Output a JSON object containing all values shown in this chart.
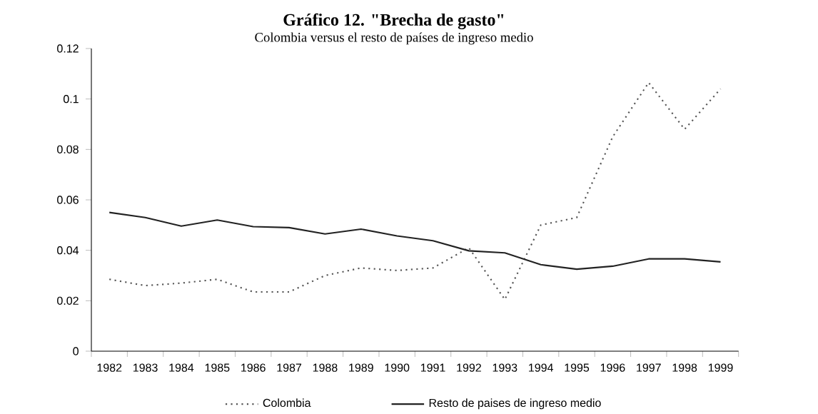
{
  "chart_data": {
    "type": "line",
    "title": "Gráfico 12. \"Brecha de gasto\"",
    "subtitle": "Colombia versus el resto de países de ingreso medio",
    "categories": [
      "1982",
      "1983",
      "1984",
      "1985",
      "1986",
      "1987",
      "1988",
      "1989",
      "1990",
      "1991",
      "1992",
      "1993",
      "1994",
      "1995",
      "1996",
      "1997",
      "1998",
      "1999"
    ],
    "series": [
      {
        "name": "Colombia",
        "color": "#555555",
        "line_style": "dotted",
        "values": [
          0.0285,
          0.026,
          0.027,
          0.0285,
          0.0235,
          0.0235,
          0.03,
          0.033,
          0.032,
          0.033,
          0.041,
          0.0205,
          0.05,
          0.053,
          0.085,
          0.1065,
          0.088,
          0.104
        ]
      },
      {
        "name": "Resto de paises de ingreso medio",
        "color": "#222222",
        "line_style": "solid",
        "values": [
          0.055,
          0.053,
          0.0496,
          0.052,
          0.0494,
          0.049,
          0.0465,
          0.0484,
          0.0457,
          0.0438,
          0.0398,
          0.039,
          0.0343,
          0.0325,
          0.0337,
          0.0366,
          0.0366,
          0.0354
        ]
      }
    ],
    "ylim": [
      0,
      0.12
    ],
    "yticks": [
      0,
      0.02,
      0.04,
      0.06,
      0.08,
      0.1,
      0.12
    ],
    "grid": false,
    "legend": "bottom",
    "marker": "none"
  }
}
